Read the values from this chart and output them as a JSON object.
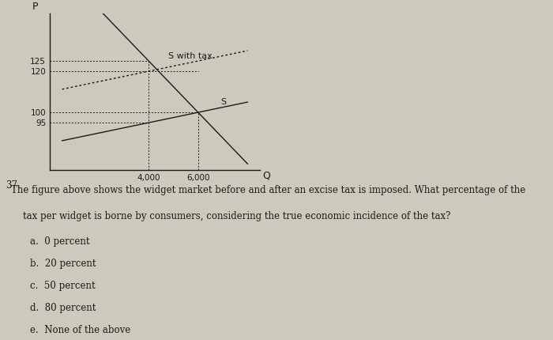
{
  "background_color": "#cdc9bc",
  "graph_bg": "#cdc9bc",
  "axis_label_p": "P",
  "axis_label_q": "Q",
  "question_number": "37.",
  "yticks": [
    95,
    100,
    120,
    125
  ],
  "xtick_labels": [
    "4,000",
    "6,000"
  ],
  "xtick_vals": [
    4000,
    6000
  ],
  "xlim": [
    0,
    8500
  ],
  "ylim": [
    72,
    148
  ],
  "supply_label": "S",
  "supply_tax_label": "S with tax",
  "line_color": "#1a1a1a",
  "font_size_axis": 7.5,
  "font_size_labels": 8,
  "font_size_question": 8.5,
  "font_size_choices": 8.5,
  "question_text_line1": "The figure above shows the widget market before and after an excise tax is imposed. What percentage of the",
  "question_text_line2": "    tax per widget is borne by consumers, considering the true economic incidence of the tax?",
  "choices": [
    "a.  0 percent",
    "b.  20 percent",
    "c.  50 percent",
    "d.  80 percent",
    "e.  None of the above"
  ]
}
